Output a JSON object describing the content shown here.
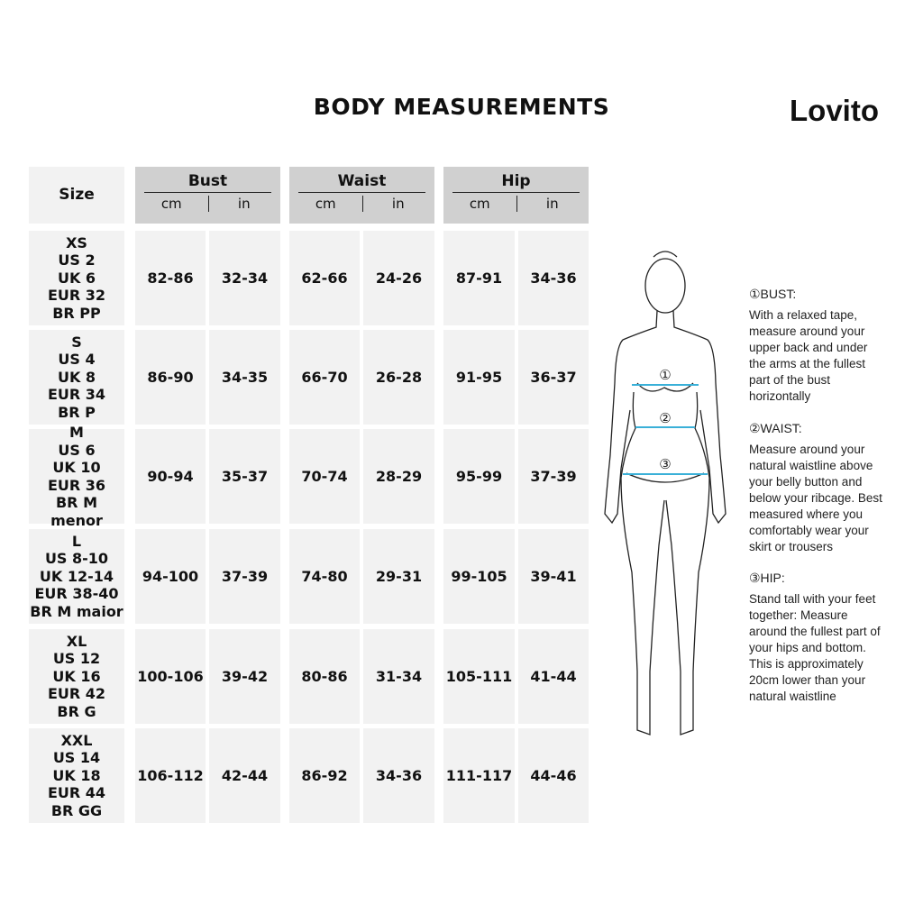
{
  "title": "BODY MEASUREMENTS",
  "brand": "Lovito",
  "table": {
    "size_header": "Size",
    "groups": [
      {
        "label": "Bust",
        "units": [
          "cm",
          "in"
        ]
      },
      {
        "label": "Waist",
        "units": [
          "cm",
          "in"
        ]
      },
      {
        "label": "Hip",
        "units": [
          "cm",
          "in"
        ]
      }
    ],
    "rows": [
      {
        "size": [
          "XS",
          "US 2",
          "UK 6",
          "EUR 32",
          "BR PP"
        ],
        "values": [
          "82-86",
          "32-34",
          "62-66",
          "24-26",
          "87-91",
          "34-36"
        ]
      },
      {
        "size": [
          "S",
          "US 4",
          "UK 8",
          "EUR 34",
          "BR P"
        ],
        "values": [
          "86-90",
          "34-35",
          "66-70",
          "26-28",
          "91-95",
          "36-37"
        ]
      },
      {
        "size": [
          "M",
          "US 6",
          "UK 10",
          "EUR 36",
          "BR M menor"
        ],
        "values": [
          "90-94",
          "35-37",
          "70-74",
          "28-29",
          "95-99",
          "37-39"
        ]
      },
      {
        "size": [
          "L",
          "US 8-10",
          "UK 12-14",
          "EUR 38-40",
          "BR M maior"
        ],
        "values": [
          "94-100",
          "37-39",
          "74-80",
          "29-31",
          "99-105",
          "39-41"
        ]
      },
      {
        "size": [
          "XL",
          "US 12",
          "UK 16",
          "EUR 42",
          "BR G"
        ],
        "values": [
          "100-106",
          "39-42",
          "80-86",
          "31-34",
          "105-111",
          "41-44"
        ]
      },
      {
        "size": [
          "XXL",
          "US 14",
          "UK 18",
          "EUR 44",
          "BR GG"
        ],
        "values": [
          "106-112",
          "42-44",
          "86-92",
          "34-36",
          "111-117",
          "44-46"
        ]
      }
    ]
  },
  "figure": {
    "markers": [
      "①",
      "②",
      "③"
    ],
    "tape_color": "#3ab0d8"
  },
  "guide": [
    {
      "heading": "①BUST:",
      "lines": [
        "With a relaxed tape,",
        "measure around your",
        "upper back and under",
        "the arms at the fullest",
        "part of the bust",
        "horizontally"
      ]
    },
    {
      "heading": "②WAIST:",
      "lines": [
        "Measure around your",
        "natural waistline above",
        "your belly button and",
        "below your ribcage. Best",
        "measured where you",
        "comfortably wear your",
        "skirt or trousers"
      ]
    },
    {
      "heading": "③HIP:",
      "lines": [
        "Stand tall with your feet",
        "together: Measure",
        "around the fullest part of",
        "your hips and bottom.",
        "This is approximately",
        "20cm lower than your",
        "natural waistline"
      ]
    }
  ]
}
